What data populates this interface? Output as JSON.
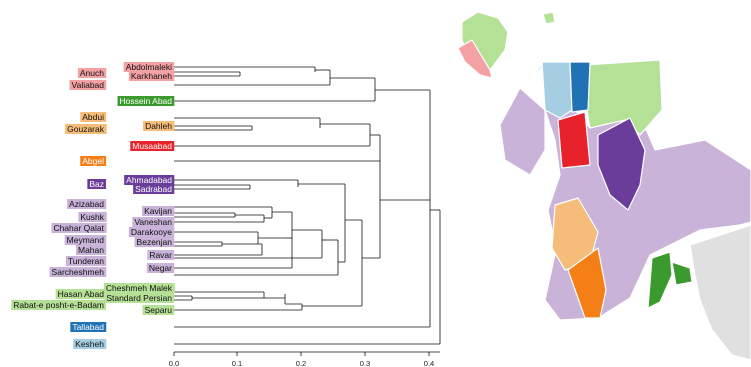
{
  "colors": {
    "pink": "#f4a1a4",
    "green_dark": "#3a9a2e",
    "green_light": "#b5e197",
    "orange_light": "#f6bd7a",
    "orange": "#f47f17",
    "red": "#e8222a",
    "purple_dark": "#6a3d9a",
    "purple_light": "#c9b3d9",
    "blue": "#2171b5",
    "blue_light": "#a6cee3",
    "grey": "#e0e0e0"
  },
  "dendrogram": {
    "leaves": [
      {
        "name": "Abdolmaleki",
        "color": "pink"
      },
      {
        "name": "Karkhaneh",
        "color": "pink"
      },
      {
        "name": "Hossein Abad",
        "color": "green_dark"
      },
      {
        "name": "Dahleh",
        "color": "orange_light"
      },
      {
        "name": "Musaabad",
        "color": "red"
      },
      {
        "name": "Ahmadabad",
        "color": "purple_dark"
      },
      {
        "name": "Sadrabad",
        "color": "purple_dark"
      },
      {
        "name": "Kavijan",
        "color": "purple_light"
      },
      {
        "name": "Vaneshan",
        "color": "purple_light"
      },
      {
        "name": "Darakooye",
        "color": "purple_light"
      },
      {
        "name": "Bezenjan",
        "color": "purple_light"
      },
      {
        "name": "Ravar",
        "color": "purple_light"
      },
      {
        "name": "Negar",
        "color": "purple_light"
      },
      {
        "name": "Cheshmeh Malek",
        "color": "green_light"
      },
      {
        "name": "Standard Persian",
        "color": "green_light"
      },
      {
        "name": "Separu",
        "color": "green_light"
      }
    ],
    "side_labels": [
      {
        "name": "Anuch",
        "color": "pink"
      },
      {
        "name": "Valiabad",
        "color": "pink"
      },
      {
        "name": "Abdui",
        "color": "orange_light"
      },
      {
        "name": "Gouzarak",
        "color": "orange_light"
      },
      {
        "name": "Abgel",
        "color": "orange"
      },
      {
        "name": "Baz",
        "color": "purple_dark"
      },
      {
        "name": "Azizabad",
        "color": "purple_light"
      },
      {
        "name": "Kushk",
        "color": "purple_light"
      },
      {
        "name": "Chahar Qalat",
        "color": "purple_light"
      },
      {
        "name": "Meymand",
        "color": "purple_light"
      },
      {
        "name": "Mahan",
        "color": "purple_light"
      },
      {
        "name": "Tunderan",
        "color": "purple_light"
      },
      {
        "name": "Sarcheshmeh",
        "color": "purple_light"
      },
      {
        "name": "Hasan Abad",
        "color": "green_light"
      },
      {
        "name": "Rabat-e posht-e-Badam",
        "color": "green_light"
      },
      {
        "name": "Tallabad",
        "color": "blue"
      },
      {
        "name": "Kesheh",
        "color": "blue_light"
      }
    ],
    "axis_ticks": [
      "0.0",
      "0.1",
      "0.2",
      "0.3",
      "0.4"
    ]
  }
}
